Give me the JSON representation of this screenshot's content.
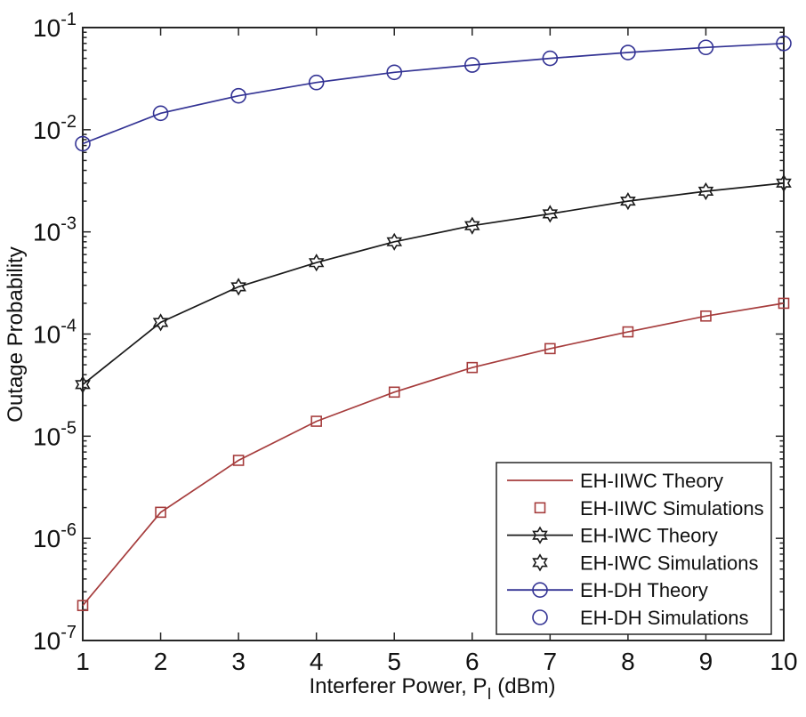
{
  "figure": {
    "background": "#ffffff",
    "axis_color": "#262626"
  },
  "chart_data": {
    "type": "line",
    "title": "",
    "xlabel": "Interferer Power, P_I (dBm)",
    "xlabel_parts": {
      "pre": "Interferer Power, P",
      "sub": "I",
      "post": " (dBm)"
    },
    "ylabel": "Outage Probability",
    "x_scale": "linear",
    "y_scale": "log",
    "xlim": [
      1,
      10
    ],
    "ylim": [
      1e-07,
      0.1
    ],
    "x_ticks": [
      1,
      2,
      3,
      4,
      5,
      6,
      7,
      8,
      9,
      10
    ],
    "y_tick_exponents": [
      -1,
      -2,
      -3,
      -4,
      -5,
      -6,
      -7
    ],
    "grid": false,
    "legend_position": "inside-lower-right",
    "x": [
      1,
      2,
      3,
      4,
      5,
      6,
      7,
      8,
      9,
      10
    ],
    "series": [
      {
        "name": "EH-IIWC",
        "color": "#a63d3d",
        "marker": "square",
        "values": [
          2.2e-07,
          1.8e-06,
          5.8e-06,
          1.4e-05,
          2.7e-05,
          4.7e-05,
          7.2e-05,
          0.000105,
          0.00015,
          0.0002
        ]
      },
      {
        "name": "EH-IWC",
        "color": "#1a1a1a",
        "marker": "hexagram",
        "values": [
          3.2e-05,
          0.00013,
          0.00029,
          0.0005,
          0.0008,
          0.00115,
          0.0015,
          0.002,
          0.0025,
          0.003
        ]
      },
      {
        "name": "EH-DH",
        "color": "#333394",
        "marker": "circle",
        "values": [
          0.0073,
          0.0145,
          0.0215,
          0.029,
          0.0365,
          0.043,
          0.05,
          0.057,
          0.064,
          0.07
        ]
      }
    ],
    "legend": [
      {
        "label": "EH-IIWC Theory",
        "color": "#a63d3d",
        "sample": "line"
      },
      {
        "label": "EH-IIWC Simulations",
        "color": "#a63d3d",
        "sample": "square"
      },
      {
        "label": "EH-IWC Theory",
        "color": "#1a1a1a",
        "sample": "line+hexagram"
      },
      {
        "label": "EH-IWC Simulations",
        "color": "#1a1a1a",
        "sample": "hexagram"
      },
      {
        "label": "EH-DH Theory",
        "color": "#333394",
        "sample": "line+circle"
      },
      {
        "label": "EH-DH Simulations",
        "color": "#333394",
        "sample": "circle"
      }
    ]
  }
}
